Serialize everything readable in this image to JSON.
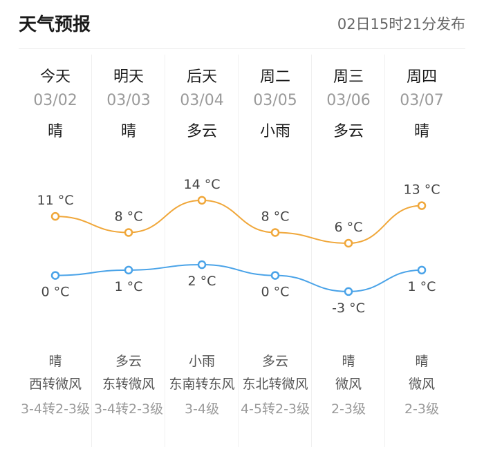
{
  "header": {
    "title": "天气预报",
    "published": "02日15时21分发布"
  },
  "days": [
    {
      "day": "今天",
      "date": "03/02",
      "weather": "晴",
      "night_weather": "晴",
      "wind": "西转微风",
      "level": "3-4转2-3级"
    },
    {
      "day": "明天",
      "date": "03/03",
      "weather": "晴",
      "night_weather": "多云",
      "wind": "东转微风",
      "level": "3-4转2-3级"
    },
    {
      "day": "后天",
      "date": "03/04",
      "weather": "多云",
      "night_weather": "小雨",
      "wind": "东南转东风",
      "level": "3-4级"
    },
    {
      "day": "周二",
      "date": "03/05",
      "weather": "小雨",
      "night_weather": "多云",
      "wind": "东北转微风",
      "level": "4-5转2-3级"
    },
    {
      "day": "周三",
      "date": "03/06",
      "weather": "多云",
      "night_weather": "晴",
      "wind": "微风",
      "level": "2-3级"
    },
    {
      "day": "周四",
      "date": "03/07",
      "weather": "晴",
      "night_weather": "晴",
      "wind": "微风",
      "level": "2-3级"
    }
  ],
  "chart_data": {
    "type": "line",
    "categories": [
      "03/02",
      "03/03",
      "03/04",
      "03/05",
      "03/06",
      "03/07"
    ],
    "series": [
      {
        "values": [
          11,
          8,
          14,
          8,
          6,
          13
        ],
        "color": "#f0a73a"
      },
      {
        "values": [
          0,
          1,
          2,
          0,
          -3,
          1
        ],
        "color": "#4aa3e8"
      }
    ],
    "unit": "°C"
  }
}
